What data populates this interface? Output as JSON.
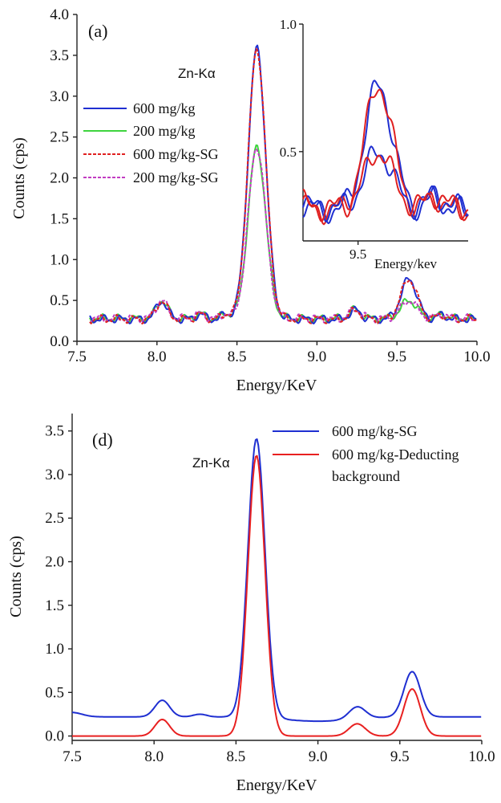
{
  "chart_data": [
    {
      "type": "line",
      "panel_label": "(a)",
      "xlabel": "Energy/KeV",
      "ylabel": "Counts (cps)",
      "xlim": [
        7.5,
        10.0
      ],
      "ylim": [
        0.0,
        4.0
      ],
      "xticks": [
        "7.5",
        "8.0",
        "8.5",
        "9.0",
        "9.5",
        "10.0"
      ],
      "yticks": [
        "0.0",
        "0.5",
        "1.0",
        "1.5",
        "2.0",
        "2.5",
        "3.0",
        "3.5",
        "4.0"
      ],
      "annotation": "Zn-Kα",
      "legend_position": "left",
      "series": [
        {
          "name": "600 mg/kg",
          "color": "#1f2fd1",
          "style": "solid",
          "peak_height": 3.59,
          "peak2_height": 0.76,
          "baseline": 0.27
        },
        {
          "name": "200 mg/kg",
          "color": "#3ed43e",
          "style": "solid",
          "peak_height": 2.38,
          "peak2_height": 0.5,
          "baseline": 0.28
        },
        {
          "name": "600 mg/kg-SG",
          "color": "#e02020",
          "style": "dashed",
          "peak_height": 3.58,
          "peak2_height": 0.76,
          "baseline": 0.27
        },
        {
          "name": "200 mg/kg-SG",
          "color": "#c23cc2",
          "style": "dashed",
          "peak_height": 2.38,
          "peak2_height": 0.5,
          "baseline": 0.28
        }
      ],
      "inset": {
        "xlabel": "Energy/kev",
        "xlim": [
          9.3,
          9.9
        ],
        "ylim": [
          0.15,
          1.0
        ],
        "xticks": [
          "9.5"
        ],
        "yticks": [
          "0.5",
          "1.0"
        ]
      }
    },
    {
      "type": "line",
      "panel_label": "(d)",
      "xlabel": "Energy/KeV",
      "ylabel": "Counts (cps)",
      "xlim": [
        7.5,
        10.0
      ],
      "ylim": [
        -0.05,
        3.7
      ],
      "xticks": [
        "7.5",
        "8.0",
        "8.5",
        "9.0",
        "9.5",
        "10.0"
      ],
      "yticks": [
        "0.0",
        "0.5",
        "1.0",
        "1.5",
        "2.0",
        "2.5",
        "3.0",
        "3.5"
      ],
      "annotation": "Zn-Kα",
      "legend_position": "top-right",
      "legend_lines": [
        "600 mg/kg-SG",
        "600 mg/kg-Deducting",
        "background"
      ],
      "series": [
        {
          "name": "600 mg/kg-SG",
          "color": "#1f2fd1",
          "peak_height": 3.42,
          "peak2_height": 0.74,
          "baseline": 0.22
        },
        {
          "name": "600 mg/kg-Deducting background",
          "color": "#e82020",
          "peak_height": 3.22,
          "peak2_height": 0.54,
          "baseline": 0.0
        }
      ]
    }
  ]
}
